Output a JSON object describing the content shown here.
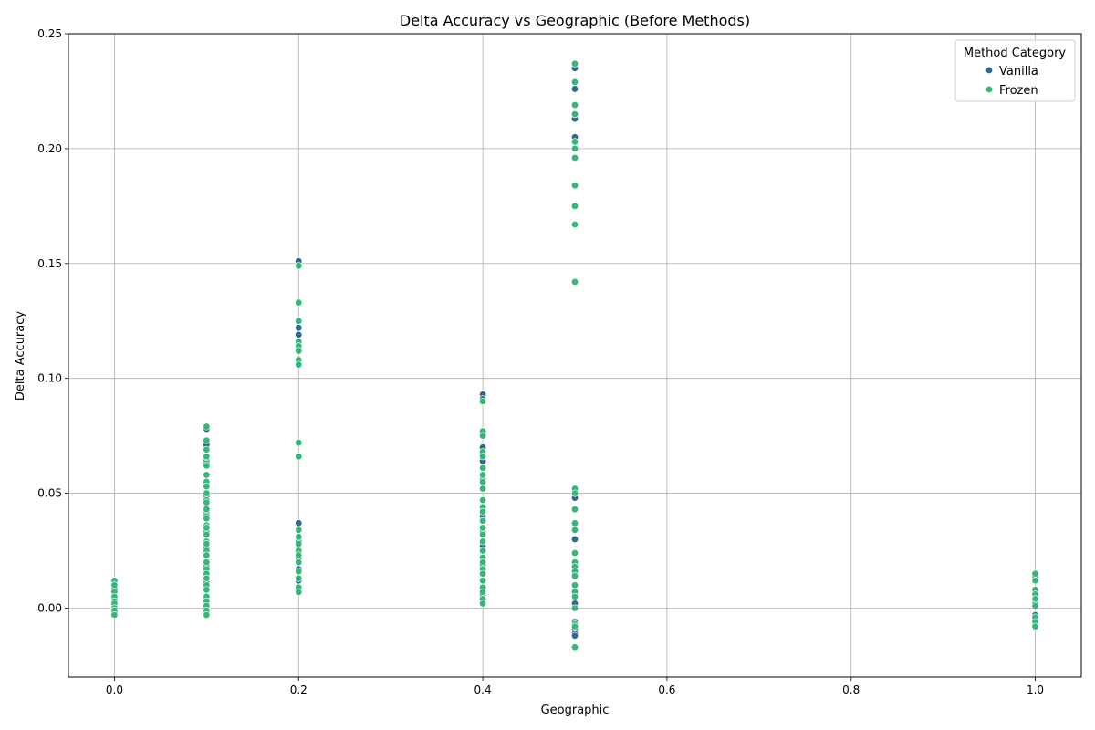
{
  "chart_data": {
    "type": "scatter",
    "title": "Delta Accuracy vs Geographic (Before Methods)",
    "xlabel": "Geographic",
    "ylabel": "Delta Accuracy",
    "xlim": [
      -0.05,
      1.05
    ],
    "ylim": [
      -0.03,
      0.25
    ],
    "xticks": [
      "0.0",
      "0.2",
      "0.4",
      "0.6",
      "0.8",
      "1.0"
    ],
    "yticks": [
      "0.00",
      "0.05",
      "0.10",
      "0.15",
      "0.20",
      "0.25"
    ],
    "grid": true,
    "legend": {
      "title": "Method Category",
      "position": "top-right"
    },
    "series": [
      {
        "name": "Vanilla",
        "color": "#31688e",
        "points": [
          [
            0.0,
            0.011
          ],
          [
            0.0,
            0.008
          ],
          [
            0.0,
            0.004
          ],
          [
            0.0,
            0.001
          ],
          [
            0.0,
            -0.002
          ],
          [
            0.1,
            0.078
          ],
          [
            0.1,
            0.071
          ],
          [
            0.1,
            0.064
          ],
          [
            0.1,
            0.058
          ],
          [
            0.1,
            0.049
          ],
          [
            0.1,
            0.041
          ],
          [
            0.1,
            0.033
          ],
          [
            0.1,
            0.026
          ],
          [
            0.1,
            0.018
          ],
          [
            0.1,
            0.011
          ],
          [
            0.1,
            0.004
          ],
          [
            0.1,
            -0.002
          ],
          [
            0.2,
            0.151
          ],
          [
            0.2,
            0.122
          ],
          [
            0.2,
            0.119
          ],
          [
            0.2,
            0.113
          ],
          [
            0.2,
            0.108
          ],
          [
            0.2,
            0.037
          ],
          [
            0.2,
            0.029
          ],
          [
            0.2,
            0.022
          ],
          [
            0.2,
            0.017
          ],
          [
            0.2,
            0.012
          ],
          [
            0.2,
            0.008
          ],
          [
            0.4,
            0.093
          ],
          [
            0.4,
            0.091
          ],
          [
            0.4,
            0.076
          ],
          [
            0.4,
            0.07
          ],
          [
            0.4,
            0.064
          ],
          [
            0.4,
            0.056
          ],
          [
            0.4,
            0.047
          ],
          [
            0.4,
            0.04
          ],
          [
            0.4,
            0.033
          ],
          [
            0.4,
            0.027
          ],
          [
            0.4,
            0.019
          ],
          [
            0.4,
            0.012
          ],
          [
            0.4,
            0.006
          ],
          [
            0.4,
            0.002
          ],
          [
            0.5,
            0.235
          ],
          [
            0.5,
            0.226
          ],
          [
            0.5,
            0.213
          ],
          [
            0.5,
            0.205
          ],
          [
            0.5,
            0.048
          ],
          [
            0.5,
            0.03
          ],
          [
            0.5,
            0.002
          ],
          [
            0.5,
            -0.006
          ],
          [
            0.5,
            -0.009
          ],
          [
            0.5,
            -0.011
          ],
          [
            0.5,
            -0.012
          ],
          [
            1.0,
            0.014
          ],
          [
            1.0,
            0.007
          ],
          [
            1.0,
            0.002
          ],
          [
            1.0,
            -0.003
          ],
          [
            1.0,
            -0.005
          ],
          [
            1.0,
            -0.007
          ]
        ]
      },
      {
        "name": "Frozen",
        "color": "#35b779",
        "points": [
          [
            0.0,
            0.012
          ],
          [
            0.0,
            0.01
          ],
          [
            0.0,
            0.007
          ],
          [
            0.0,
            0.005
          ],
          [
            0.0,
            0.003
          ],
          [
            0.0,
            0.002
          ],
          [
            0.0,
            0.0
          ],
          [
            0.0,
            -0.001
          ],
          [
            0.0,
            -0.003
          ],
          [
            0.1,
            0.079
          ],
          [
            0.1,
            0.073
          ],
          [
            0.1,
            0.069
          ],
          [
            0.1,
            0.066
          ],
          [
            0.1,
            0.063
          ],
          [
            0.1,
            0.062
          ],
          [
            0.1,
            0.058
          ],
          [
            0.1,
            0.055
          ],
          [
            0.1,
            0.053
          ],
          [
            0.1,
            0.05
          ],
          [
            0.1,
            0.047
          ],
          [
            0.1,
            0.046
          ],
          [
            0.1,
            0.043
          ],
          [
            0.1,
            0.04
          ],
          [
            0.1,
            0.039
          ],
          [
            0.1,
            0.036
          ],
          [
            0.1,
            0.035
          ],
          [
            0.1,
            0.032
          ],
          [
            0.1,
            0.029
          ],
          [
            0.1,
            0.028
          ],
          [
            0.1,
            0.025
          ],
          [
            0.1,
            0.023
          ],
          [
            0.1,
            0.02
          ],
          [
            0.1,
            0.017
          ],
          [
            0.1,
            0.015
          ],
          [
            0.1,
            0.013
          ],
          [
            0.1,
            0.01
          ],
          [
            0.1,
            0.008
          ],
          [
            0.1,
            0.005
          ],
          [
            0.1,
            0.003
          ],
          [
            0.1,
            0.001
          ],
          [
            0.1,
            -0.001
          ],
          [
            0.1,
            -0.003
          ],
          [
            0.2,
            0.149
          ],
          [
            0.2,
            0.133
          ],
          [
            0.2,
            0.125
          ],
          [
            0.2,
            0.116
          ],
          [
            0.2,
            0.114
          ],
          [
            0.2,
            0.112
          ],
          [
            0.2,
            0.108
          ],
          [
            0.2,
            0.106
          ],
          [
            0.2,
            0.072
          ],
          [
            0.2,
            0.066
          ],
          [
            0.2,
            0.034
          ],
          [
            0.2,
            0.031
          ],
          [
            0.2,
            0.028
          ],
          [
            0.2,
            0.025
          ],
          [
            0.2,
            0.023
          ],
          [
            0.2,
            0.02
          ],
          [
            0.2,
            0.016
          ],
          [
            0.2,
            0.013
          ],
          [
            0.2,
            0.009
          ],
          [
            0.2,
            0.007
          ],
          [
            0.4,
            0.09
          ],
          [
            0.4,
            0.077
          ],
          [
            0.4,
            0.075
          ],
          [
            0.4,
            0.068
          ],
          [
            0.4,
            0.066
          ],
          [
            0.4,
            0.061
          ],
          [
            0.4,
            0.058
          ],
          [
            0.4,
            0.055
          ],
          [
            0.4,
            0.052
          ],
          [
            0.4,
            0.047
          ],
          [
            0.4,
            0.044
          ],
          [
            0.4,
            0.042
          ],
          [
            0.4,
            0.038
          ],
          [
            0.4,
            0.035
          ],
          [
            0.4,
            0.032
          ],
          [
            0.4,
            0.029
          ],
          [
            0.4,
            0.025
          ],
          [
            0.4,
            0.022
          ],
          [
            0.4,
            0.02
          ],
          [
            0.4,
            0.017
          ],
          [
            0.4,
            0.015
          ],
          [
            0.4,
            0.012
          ],
          [
            0.4,
            0.009
          ],
          [
            0.4,
            0.007
          ],
          [
            0.4,
            0.004
          ],
          [
            0.4,
            0.002
          ],
          [
            0.5,
            0.237
          ],
          [
            0.5,
            0.229
          ],
          [
            0.5,
            0.219
          ],
          [
            0.5,
            0.215
          ],
          [
            0.5,
            0.203
          ],
          [
            0.5,
            0.2
          ],
          [
            0.5,
            0.196
          ],
          [
            0.5,
            0.184
          ],
          [
            0.5,
            0.175
          ],
          [
            0.5,
            0.167
          ],
          [
            0.5,
            0.142
          ],
          [
            0.5,
            0.052
          ],
          [
            0.5,
            0.05
          ],
          [
            0.5,
            0.043
          ],
          [
            0.5,
            0.037
          ],
          [
            0.5,
            0.034
          ],
          [
            0.5,
            0.024
          ],
          [
            0.5,
            0.02
          ],
          [
            0.5,
            0.018
          ],
          [
            0.5,
            0.016
          ],
          [
            0.5,
            0.014
          ],
          [
            0.5,
            0.01
          ],
          [
            0.5,
            0.007
          ],
          [
            0.5,
            0.005
          ],
          [
            0.5,
            0.0
          ],
          [
            0.5,
            -0.007
          ],
          [
            0.5,
            -0.008
          ],
          [
            0.5,
            -0.017
          ],
          [
            1.0,
            0.015
          ],
          [
            1.0,
            0.012
          ],
          [
            1.0,
            0.008
          ],
          [
            1.0,
            0.006
          ],
          [
            1.0,
            0.004
          ],
          [
            1.0,
            0.001
          ],
          [
            1.0,
            -0.004
          ],
          [
            1.0,
            -0.006
          ],
          [
            1.0,
            -0.008
          ]
        ]
      }
    ]
  }
}
